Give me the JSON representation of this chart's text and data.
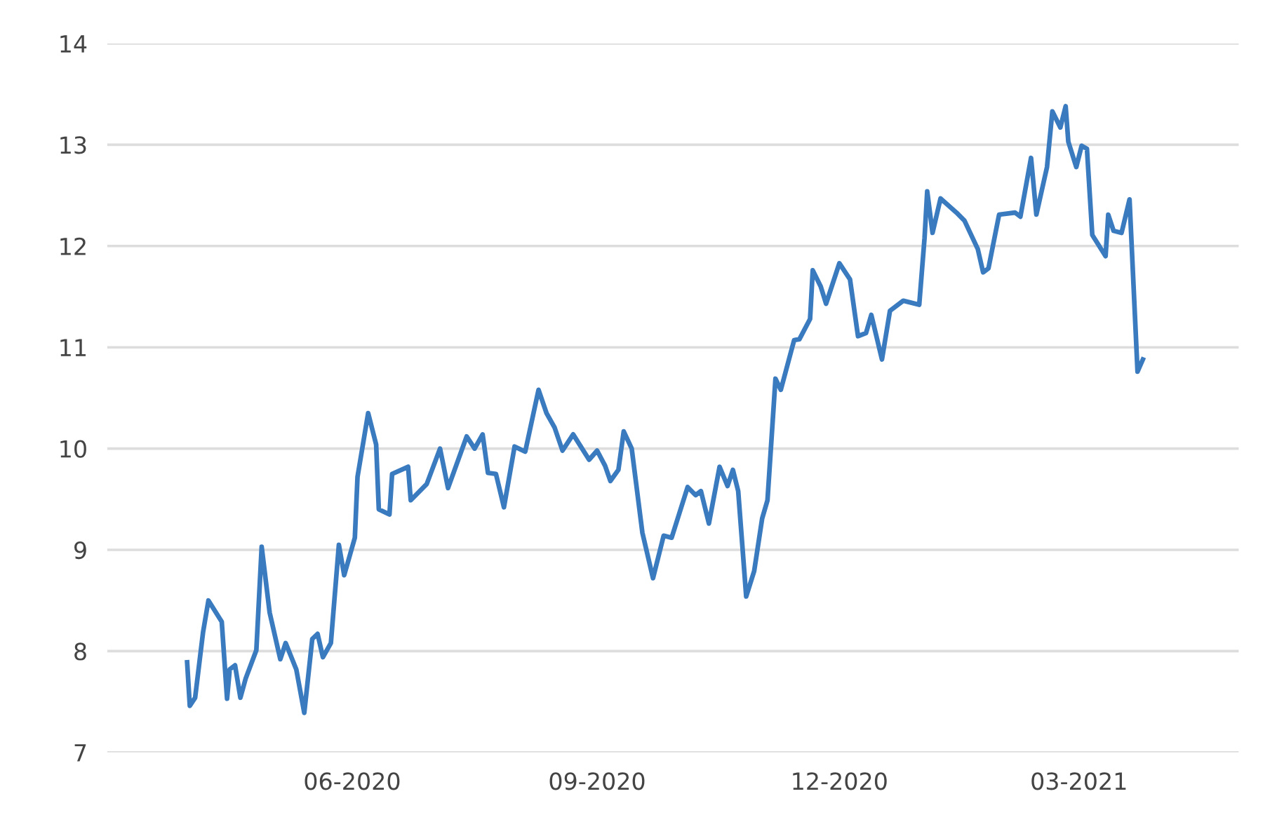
{
  "chart_data": {
    "type": "line",
    "x": [
      "2020-03-31",
      "2020-04-01",
      "2020-04-03",
      "2020-04-06",
      "2020-04-08",
      "2020-04-13",
      "2020-04-15",
      "2020-04-16",
      "2020-04-18",
      "2020-04-20",
      "2020-04-22",
      "2020-04-26",
      "2020-04-28",
      "2020-05-01",
      "2020-05-05",
      "2020-05-07",
      "2020-05-11",
      "2020-05-14",
      "2020-05-17",
      "2020-05-19",
      "2020-05-21",
      "2020-05-24",
      "2020-05-27",
      "2020-05-29",
      "2020-06-02",
      "2020-06-03",
      "2020-06-07",
      "2020-06-10",
      "2020-06-11",
      "2020-06-15",
      "2020-06-16",
      "2020-06-22",
      "2020-06-23",
      "2020-06-29",
      "2020-07-04",
      "2020-07-07",
      "2020-07-14",
      "2020-07-17",
      "2020-07-20",
      "2020-07-22",
      "2020-07-25",
      "2020-07-28",
      "2020-08-01",
      "2020-08-05",
      "2020-08-10",
      "2020-08-13",
      "2020-08-16",
      "2020-08-19",
      "2020-08-23",
      "2020-08-29",
      "2020-09-01",
      "2020-09-04",
      "2020-09-06",
      "2020-09-09",
      "2020-09-11",
      "2020-09-14",
      "2020-09-18",
      "2020-09-22",
      "2020-09-26",
      "2020-09-29",
      "2020-10-05",
      "2020-10-08",
      "2020-10-10",
      "2020-10-13",
      "2020-10-17",
      "2020-10-20",
      "2020-10-22",
      "2020-10-24",
      "2020-10-27",
      "2020-10-30",
      "2020-11-02",
      "2020-11-04",
      "2020-11-07",
      "2020-11-09",
      "2020-11-14",
      "2020-11-16",
      "2020-11-20",
      "2020-11-21",
      "2020-11-24",
      "2020-11-26",
      "2020-12-01",
      "2020-12-05",
      "2020-12-08",
      "2020-12-11",
      "2020-12-13",
      "2020-12-17",
      "2020-12-20",
      "2020-12-25",
      "2020-12-31",
      "2021-01-02",
      "2021-01-03",
      "2021-01-05",
      "2021-01-08",
      "2021-01-14",
      "2021-01-17",
      "2021-01-22",
      "2021-01-24",
      "2021-01-26",
      "2021-01-30",
      "2021-02-05",
      "2021-02-07",
      "2021-02-11",
      "2021-02-13",
      "2021-02-17",
      "2021-02-19",
      "2021-02-22",
      "2021-02-24",
      "2021-02-25",
      "2021-02-28",
      "2021-03-02",
      "2021-03-04",
      "2021-03-06",
      "2021-03-11",
      "2021-03-12",
      "2021-03-14",
      "2021-03-17",
      "2021-03-20",
      "2021-03-23",
      "2021-03-25"
    ],
    "series": [
      {
        "color": "#3a7abf",
        "values": [
          7.89,
          7.46,
          7.54,
          8.19,
          8.5,
          8.29,
          7.53,
          7.82,
          7.86,
          7.54,
          7.73,
          8.01,
          9.03,
          8.38,
          7.92,
          8.08,
          7.82,
          7.39,
          8.12,
          8.17,
          7.94,
          8.08,
          9.05,
          8.75,
          9.12,
          9.72,
          10.35,
          10.04,
          9.4,
          9.35,
          9.75,
          9.82,
          9.49,
          9.65,
          10.0,
          9.61,
          10.12,
          10.0,
          10.14,
          9.76,
          9.75,
          9.42,
          10.02,
          9.97,
          10.58,
          10.35,
          10.21,
          9.98,
          10.14,
          9.89,
          9.98,
          9.83,
          9.68,
          9.79,
          10.17,
          10.0,
          9.17,
          8.72,
          9.14,
          9.12,
          9.62,
          9.54,
          9.58,
          9.26,
          9.82,
          9.63,
          9.79,
          9.58,
          8.54,
          8.79,
          9.31,
          9.49,
          10.69,
          10.58,
          11.07,
          11.08,
          11.28,
          11.76,
          11.6,
          11.43,
          11.83,
          11.67,
          11.11,
          11.14,
          11.32,
          10.88,
          11.36,
          11.46,
          11.42,
          12.08,
          12.54,
          12.13,
          12.47,
          12.33,
          12.25,
          11.97,
          11.74,
          11.78,
          12.31,
          12.33,
          12.29,
          12.87,
          12.31,
          12.78,
          13.33,
          13.17,
          13.38,
          13.03,
          12.78,
          12.99,
          12.96,
          12.11,
          11.9,
          12.31,
          12.15,
          12.13,
          12.46,
          10.76,
          10.88
        ]
      }
    ],
    "xlim": [
      "2020-03-01",
      "2021-04-30"
    ],
    "xticks": [
      {
        "value": "2020-06-01",
        "label": "06-2020"
      },
      {
        "value": "2020-09-01",
        "label": "09-2020"
      },
      {
        "value": "2020-12-01",
        "label": "12-2020"
      },
      {
        "value": "2021-03-01",
        "label": "03-2021"
      }
    ],
    "ylim": [
      7,
      14
    ],
    "yticks": [
      7,
      8,
      9,
      10,
      11,
      12,
      13,
      14
    ],
    "grid": "y",
    "legend": false,
    "marker": "none",
    "line_style": "solid"
  }
}
